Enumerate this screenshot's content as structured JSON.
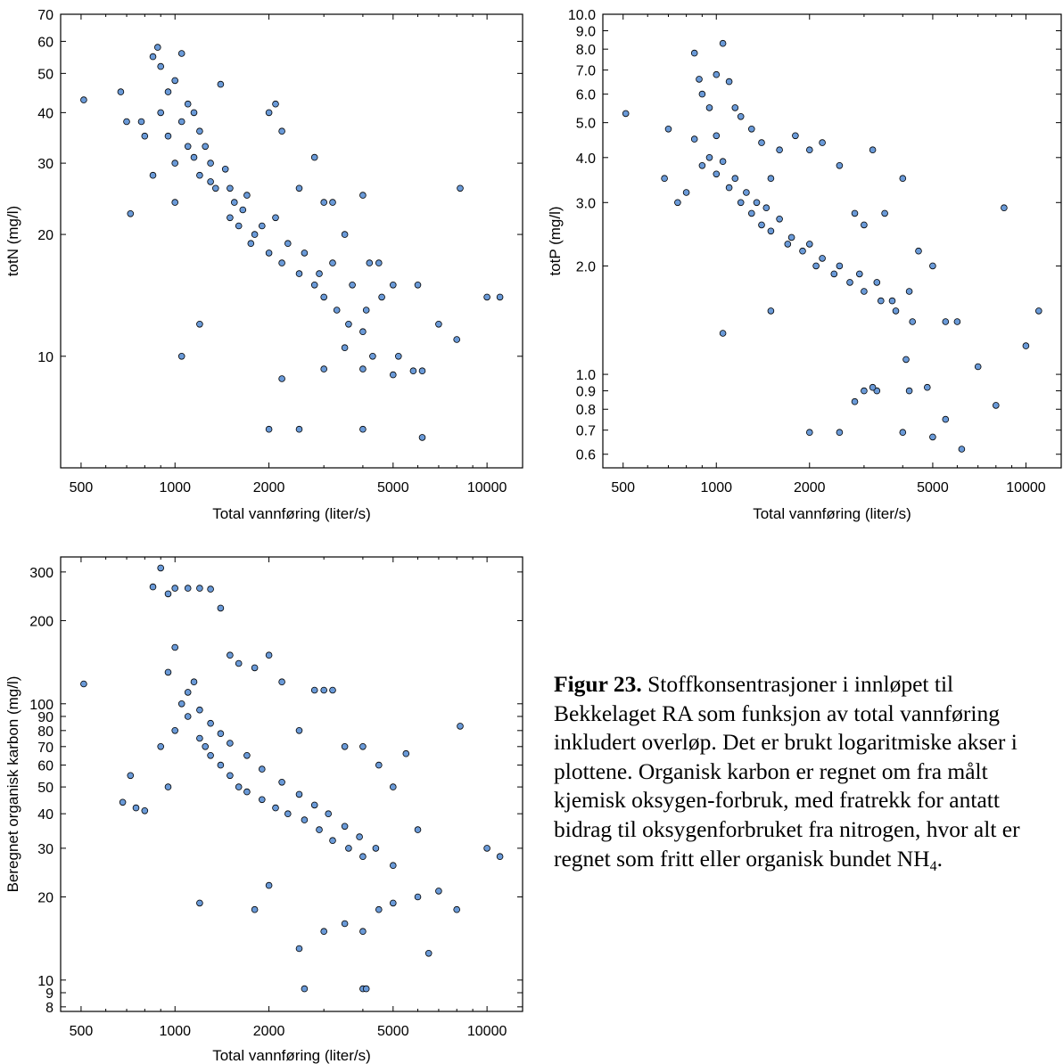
{
  "page": {
    "background": "#ffffff"
  },
  "chart_data": [
    {
      "type": "scatter",
      "xlabel": "Total vannføring (liter/s)",
      "ylabel": "totN (mg/l)",
      "xscale": "log",
      "yscale": "log",
      "xlim": [
        430,
        13000
      ],
      "ylim": [
        5.3,
        70
      ],
      "xticks": [
        500,
        1000,
        2000,
        5000,
        10000
      ],
      "xtick_labels": [
        "500",
        "1000",
        "2000",
        "5000",
        "10000"
      ],
      "yticks": [
        10,
        20,
        30,
        40,
        50,
        60,
        70
      ],
      "ytick_labels": [
        "10",
        "20",
        "30",
        "40",
        "50",
        "60",
        "70"
      ],
      "marker_color": "#6a9ad8",
      "marker_edge": "#000000",
      "grid": false,
      "points": [
        [
          510,
          43
        ],
        [
          670,
          45
        ],
        [
          700,
          38
        ],
        [
          720,
          22.5
        ],
        [
          780,
          38
        ],
        [
          800,
          35
        ],
        [
          850,
          55
        ],
        [
          880,
          58
        ],
        [
          900,
          52
        ],
        [
          950,
          45
        ],
        [
          1000,
          48
        ],
        [
          1050,
          56
        ],
        [
          1100,
          42
        ],
        [
          1150,
          40
        ],
        [
          1200,
          36
        ],
        [
          1300,
          30
        ],
        [
          1400,
          47
        ],
        [
          1500,
          26
        ],
        [
          1700,
          25
        ],
        [
          2000,
          40
        ],
        [
          2100,
          42
        ],
        [
          2200,
          36
        ],
        [
          2500,
          26
        ],
        [
          2800,
          31
        ],
        [
          3000,
          24
        ],
        [
          3200,
          24
        ],
        [
          3500,
          20
        ],
        [
          4000,
          25
        ],
        [
          4200,
          17
        ],
        [
          4500,
          17
        ],
        [
          5000,
          15
        ],
        [
          6000,
          15
        ],
        [
          6200,
          6.3
        ],
        [
          7000,
          12
        ],
        [
          8000,
          11
        ],
        [
          8200,
          26
        ],
        [
          10000,
          14
        ],
        [
          11000,
          14
        ],
        [
          2000,
          6.6
        ],
        [
          2500,
          6.6
        ],
        [
          4000,
          6.6
        ],
        [
          1050,
          10
        ],
        [
          1200,
          12
        ],
        [
          2200,
          8.8
        ],
        [
          3000,
          9.3
        ],
        [
          3500,
          10.5
        ],
        [
          4000,
          9.3
        ],
        [
          4300,
          10
        ],
        [
          5000,
          9
        ],
        [
          5200,
          10
        ],
        [
          5800,
          9.2
        ],
        [
          6200,
          9.2
        ],
        [
          1000,
          30
        ],
        [
          900,
          40
        ],
        [
          1100,
          33
        ],
        [
          1200,
          28
        ],
        [
          1300,
          27
        ],
        [
          1500,
          22
        ],
        [
          1600,
          21
        ],
        [
          1800,
          20
        ],
        [
          2000,
          18
        ],
        [
          2200,
          17
        ],
        [
          2500,
          16
        ],
        [
          2800,
          15
        ],
        [
          3000,
          14
        ],
        [
          3300,
          13
        ],
        [
          3600,
          12
        ],
        [
          4000,
          11.5
        ],
        [
          1000,
          24
        ],
        [
          850,
          28
        ],
        [
          950,
          35
        ],
        [
          1050,
          38
        ],
        [
          1150,
          31
        ],
        [
          1250,
          33
        ],
        [
          1350,
          26
        ],
        [
          1450,
          29
        ],
        [
          1550,
          24
        ],
        [
          1650,
          23
        ],
        [
          1750,
          19
        ],
        [
          1900,
          21
        ],
        [
          2100,
          22
        ],
        [
          2300,
          19
        ],
        [
          2600,
          18
        ],
        [
          2900,
          16
        ],
        [
          3200,
          17
        ],
        [
          3700,
          15
        ],
        [
          4100,
          13
        ],
        [
          4600,
          14
        ]
      ]
    },
    {
      "type": "scatter",
      "xlabel": "Total vannføring (liter/s)",
      "ylabel": "totP (mg/l)",
      "xscale": "log",
      "yscale": "log",
      "xlim": [
        430,
        13000
      ],
      "ylim": [
        0.55,
        10
      ],
      "xticks": [
        500,
        1000,
        2000,
        5000,
        10000
      ],
      "xtick_labels": [
        "500",
        "1000",
        "2000",
        "5000",
        "10000"
      ],
      "yticks": [
        0.6,
        0.7,
        0.8,
        0.9,
        1.0,
        2.0,
        3.0,
        4.0,
        5.0,
        6.0,
        7.0,
        8.0,
        9.0,
        10.0
      ],
      "ytick_labels": [
        "0.6",
        "0.7",
        "0.8",
        "0.9",
        "1.0",
        "2.0",
        "3.0",
        "4.0",
        "5.0",
        "6.0",
        "7.0",
        "8.0",
        "9.0",
        "10.0"
      ],
      "marker_color": "#6a9ad8",
      "marker_edge": "#000000",
      "grid": false,
      "points": [
        [
          510,
          5.3
        ],
        [
          680,
          3.5
        ],
        [
          700,
          4.8
        ],
        [
          750,
          3.0
        ],
        [
          800,
          3.2
        ],
        [
          850,
          7.8
        ],
        [
          880,
          6.6
        ],
        [
          900,
          6.0
        ],
        [
          950,
          5.5
        ],
        [
          1000,
          6.8
        ],
        [
          1050,
          8.3
        ],
        [
          1100,
          6.5
        ],
        [
          1150,
          5.5
        ],
        [
          1200,
          5.2
        ],
        [
          1300,
          4.8
        ],
        [
          1400,
          4.4
        ],
        [
          1500,
          3.5
        ],
        [
          1600,
          4.2
        ],
        [
          1800,
          4.6
        ],
        [
          2000,
          4.2
        ],
        [
          2200,
          4.4
        ],
        [
          2500,
          3.8
        ],
        [
          2800,
          2.8
        ],
        [
          3000,
          2.6
        ],
        [
          3200,
          4.2
        ],
        [
          3500,
          2.8
        ],
        [
          4000,
          3.5
        ],
        [
          4500,
          2.2
        ],
        [
          5000,
          2.0
        ],
        [
          5500,
          1.4
        ],
        [
          6000,
          1.4
        ],
        [
          7000,
          1.05
        ],
        [
          8000,
          0.82
        ],
        [
          8500,
          2.9
        ],
        [
          10000,
          1.2
        ],
        [
          11000,
          1.5
        ],
        [
          1050,
          1.3
        ],
        [
          1500,
          1.5
        ],
        [
          2000,
          0.69
        ],
        [
          2500,
          0.69
        ],
        [
          2800,
          0.84
        ],
        [
          3000,
          0.9
        ],
        [
          3300,
          0.9
        ],
        [
          4000,
          0.69
        ],
        [
          4200,
          0.9
        ],
        [
          5000,
          0.67
        ],
        [
          5500,
          0.75
        ],
        [
          6200,
          0.62
        ],
        [
          3200,
          0.92
        ],
        [
          4100,
          1.1
        ],
        [
          4800,
          0.92
        ],
        [
          950,
          4.0
        ],
        [
          1000,
          3.6
        ],
        [
          1100,
          3.3
        ],
        [
          1200,
          3.0
        ],
        [
          1300,
          2.8
        ],
        [
          1400,
          2.6
        ],
        [
          1500,
          2.5
        ],
        [
          1700,
          2.3
        ],
        [
          1900,
          2.2
        ],
        [
          2100,
          2.0
        ],
        [
          2400,
          1.9
        ],
        [
          2700,
          1.8
        ],
        [
          3000,
          1.7
        ],
        [
          3400,
          1.6
        ],
        [
          3800,
          1.5
        ],
        [
          4300,
          1.4
        ],
        [
          850,
          4.5
        ],
        [
          900,
          3.8
        ],
        [
          1000,
          4.6
        ],
        [
          1050,
          3.9
        ],
        [
          1150,
          3.5
        ],
        [
          1250,
          3.2
        ],
        [
          1350,
          3.0
        ],
        [
          1450,
          2.9
        ],
        [
          1600,
          2.7
        ],
        [
          1750,
          2.4
        ],
        [
          2000,
          2.3
        ],
        [
          2200,
          2.1
        ],
        [
          2500,
          2.0
        ],
        [
          2900,
          1.9
        ],
        [
          3300,
          1.8
        ],
        [
          3700,
          1.6
        ],
        [
          4200,
          1.7
        ]
      ]
    },
    {
      "type": "scatter",
      "xlabel": "Total vannføring (liter/s)",
      "ylabel": "Beregnet organisk karbon (mg/l)",
      "xscale": "log",
      "yscale": "log",
      "xlim": [
        430,
        13000
      ],
      "ylim": [
        7.7,
        340
      ],
      "xticks": [
        500,
        1000,
        2000,
        5000,
        10000
      ],
      "xtick_labels": [
        "500",
        "1000",
        "2000",
        "5000",
        "10000"
      ],
      "yticks": [
        8,
        9,
        10,
        20,
        30,
        40,
        50,
        60,
        70,
        80,
        90,
        100,
        200,
        300
      ],
      "ytick_labels": [
        "8",
        "9",
        "10",
        "20",
        "30",
        "40",
        "50",
        "60",
        "70",
        "80",
        "90",
        "100",
        "200",
        "300"
      ],
      "marker_color": "#6a9ad8",
      "marker_edge": "#000000",
      "grid": false,
      "points": [
        [
          510,
          118
        ],
        [
          680,
          44
        ],
        [
          720,
          55
        ],
        [
          750,
          42
        ],
        [
          800,
          41
        ],
        [
          850,
          265
        ],
        [
          900,
          310
        ],
        [
          950,
          250
        ],
        [
          1000,
          262
        ],
        [
          1100,
          262
        ],
        [
          1200,
          262
        ],
        [
          1300,
          260
        ],
        [
          1400,
          222
        ],
        [
          1500,
          150
        ],
        [
          1600,
          140
        ],
        [
          1800,
          135
        ],
        [
          2000,
          150
        ],
        [
          2200,
          120
        ],
        [
          2500,
          80
        ],
        [
          2800,
          112
        ],
        [
          3000,
          112
        ],
        [
          3200,
          112
        ],
        [
          3500,
          70
        ],
        [
          4000,
          70
        ],
        [
          4500,
          60
        ],
        [
          5000,
          50
        ],
        [
          5500,
          66
        ],
        [
          6000,
          35
        ],
        [
          7000,
          21
        ],
        [
          8000,
          18
        ],
        [
          8200,
          83
        ],
        [
          10000,
          30
        ],
        [
          11000,
          28
        ],
        [
          2600,
          9.3
        ],
        [
          4000,
          9.3
        ],
        [
          4100,
          9.3
        ],
        [
          2500,
          13
        ],
        [
          3000,
          15
        ],
        [
          3500,
          16
        ],
        [
          4000,
          15
        ],
        [
          4500,
          18
        ],
        [
          5000,
          19
        ],
        [
          6000,
          20
        ],
        [
          6500,
          12.5
        ],
        [
          1200,
          19
        ],
        [
          1800,
          18
        ],
        [
          2000,
          22
        ],
        [
          950,
          50
        ],
        [
          1000,
          80
        ],
        [
          1050,
          100
        ],
        [
          1100,
          90
        ],
        [
          1150,
          120
        ],
        [
          1200,
          75
        ],
        [
          1250,
          70
        ],
        [
          1300,
          65
        ],
        [
          1400,
          60
        ],
        [
          1500,
          55
        ],
        [
          1600,
          50
        ],
        [
          1700,
          48
        ],
        [
          1900,
          45
        ],
        [
          2100,
          42
        ],
        [
          2300,
          40
        ],
        [
          2600,
          38
        ],
        [
          2900,
          35
        ],
        [
          3200,
          32
        ],
        [
          3600,
          30
        ],
        [
          4000,
          28
        ],
        [
          900,
          70
        ],
        [
          950,
          130
        ],
        [
          1000,
          160
        ],
        [
          1100,
          110
        ],
        [
          1200,
          95
        ],
        [
          1300,
          85
        ],
        [
          1400,
          78
        ],
        [
          1500,
          72
        ],
        [
          1700,
          65
        ],
        [
          1900,
          58
        ],
        [
          2200,
          52
        ],
        [
          2500,
          47
        ],
        [
          2800,
          43
        ],
        [
          3100,
          40
        ],
        [
          3500,
          36
        ],
        [
          3900,
          33
        ],
        [
          4400,
          30
        ],
        [
          5000,
          26
        ]
      ]
    }
  ],
  "caption": {
    "label": "Figur 23.",
    "text": "Stoffkonsentrasjoner i innløpet til Bekkelaget RA som funksjon av total vannføring inkludert overløp. Det er brukt logaritmiske akser i plottene. Organisk karbon er regnet om fra målt kjemisk oksygen-forbruk, med fratrekk for antatt bidrag til oksygenforbruket fra nitrogen, hvor alt er regnet som fritt eller organisk bundet NH",
    "subscript": "4",
    "end": "."
  }
}
